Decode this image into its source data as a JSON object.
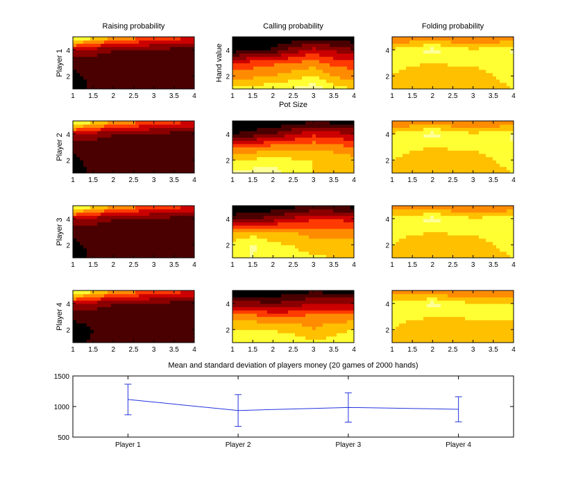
{
  "figure": {
    "column_titles": [
      "Raising probability",
      "Calling probability",
      "Folding probability"
    ],
    "row_labels": [
      "Player 1",
      "Player 2",
      "Player 3",
      "Player 4"
    ],
    "shared_x_label": "Pot Size",
    "shared_y_label": "Hand value"
  },
  "colors": {
    "colormap_hot": [
      "#000000",
      "#4a0000",
      "#8a0000",
      "#cc0000",
      "#ff3a00",
      "#ff8c00",
      "#ffc000",
      "#ffff33",
      "#ffff99",
      "#ffffff"
    ],
    "line_series": "#2233dd",
    "frame": "#000000"
  },
  "chart_data": [
    {
      "type": "heatmap",
      "title": "Raising probability",
      "ylabel": "Player 1",
      "x": [
        1,
        1.5,
        2,
        2.5,
        3,
        3.5,
        4
      ],
      "y": [
        1,
        2,
        3,
        4,
        5
      ],
      "xlim": [
        1,
        4
      ],
      "ylim": [
        1,
        5
      ],
      "xticks": [
        "1",
        "1.5",
        "2",
        "2.5",
        "3",
        "3.5",
        "4"
      ],
      "yticks": [
        "2",
        "4"
      ],
      "z": [
        [
          0.05,
          0.12,
          0.12,
          0.12,
          0.12,
          0.12,
          0.12
        ],
        [
          0.08,
          0.12,
          0.12,
          0.12,
          0.12,
          0.12,
          0.12
        ],
        [
          0.12,
          0.13,
          0.14,
          0.14,
          0.14,
          0.14,
          0.14
        ],
        [
          0.3,
          0.25,
          0.2,
          0.18,
          0.17,
          0.16,
          0.15
        ],
        [
          0.85,
          0.75,
          0.6,
          0.55,
          0.5,
          0.45,
          0.4
        ]
      ]
    },
    {
      "type": "heatmap",
      "title": "Calling probability",
      "xlabel": "Pot Size",
      "ylabel": "Hand value",
      "x": [
        1,
        1.5,
        2,
        2.5,
        3,
        3.5,
        4
      ],
      "y": [
        1,
        2,
        3,
        4,
        5
      ],
      "xlim": [
        1,
        4
      ],
      "ylim": [
        1,
        5
      ],
      "xticks": [
        "1",
        "1.5",
        "2",
        "2.5",
        "3",
        "3.5",
        "4"
      ],
      "yticks": [
        "2",
        "4"
      ],
      "z": [
        [
          0.75,
          0.75,
          0.78,
          0.82,
          0.88,
          0.75,
          0.7
        ],
        [
          0.55,
          0.58,
          0.6,
          0.65,
          0.72,
          0.6,
          0.55
        ],
        [
          0.42,
          0.45,
          0.48,
          0.52,
          0.55,
          0.47,
          0.45
        ],
        [
          0.05,
          0.08,
          0.12,
          0.25,
          0.35,
          0.28,
          0.22
        ],
        [
          0.0,
          0.0,
          0.0,
          0.02,
          0.05,
          0.03,
          0.02
        ]
      ]
    },
    {
      "type": "heatmap",
      "title": "Folding probability",
      "x": [
        1,
        1.5,
        2,
        2.5,
        3,
        3.5,
        4
      ],
      "y": [
        1,
        2,
        3,
        4,
        5
      ],
      "xlim": [
        1,
        4
      ],
      "ylim": [
        1,
        5
      ],
      "xticks": [
        "1",
        "1.5",
        "2",
        "2.5",
        "3",
        "3.5",
        "4"
      ],
      "yticks": [
        "2",
        "4"
      ],
      "z": [
        [
          0.68,
          0.62,
          0.6,
          0.6,
          0.62,
          0.68,
          0.7
        ],
        [
          0.7,
          0.62,
          0.6,
          0.6,
          0.62,
          0.7,
          0.72
        ],
        [
          0.75,
          0.72,
          0.7,
          0.72,
          0.72,
          0.75,
          0.75
        ],
        [
          0.72,
          0.78,
          0.85,
          0.76,
          0.72,
          0.75,
          0.82
        ],
        [
          0.5,
          0.5,
          0.5,
          0.5,
          0.5,
          0.5,
          0.5
        ]
      ]
    },
    {
      "type": "heatmap",
      "ylabel": "Player 2",
      "x": [
        1,
        1.5,
        2,
        2.5,
        3,
        3.5,
        4
      ],
      "y": [
        1,
        2,
        3,
        4,
        5
      ],
      "xlim": [
        1,
        4
      ],
      "ylim": [
        1,
        5
      ],
      "xticks": [
        "1",
        "1.5",
        "2",
        "2.5",
        "3",
        "3.5",
        "4"
      ],
      "yticks": [
        "2",
        "4"
      ],
      "z": [
        [
          0.06,
          0.12,
          0.12,
          0.12,
          0.12,
          0.12,
          0.12
        ],
        [
          0.08,
          0.12,
          0.12,
          0.12,
          0.12,
          0.12,
          0.1
        ],
        [
          0.12,
          0.13,
          0.14,
          0.14,
          0.14,
          0.13,
          0.1
        ],
        [
          0.3,
          0.25,
          0.2,
          0.18,
          0.17,
          0.16,
          0.15
        ],
        [
          0.85,
          0.75,
          0.6,
          0.55,
          0.5,
          0.45,
          0.4
        ]
      ]
    },
    {
      "type": "heatmap",
      "x": [
        1,
        1.5,
        2,
        2.5,
        3,
        3.5,
        4
      ],
      "y": [
        1,
        2,
        3,
        4,
        5
      ],
      "xlim": [
        1,
        4
      ],
      "ylim": [
        1,
        5
      ],
      "xticks": [
        "1",
        "1.5",
        "2",
        "2.5",
        "3",
        "3.5",
        "4"
      ],
      "yticks": [
        "2",
        "4"
      ],
      "z": [
        [
          0.82,
          0.85,
          0.86,
          0.75,
          0.7,
          0.7,
          0.7
        ],
        [
          0.7,
          0.72,
          0.74,
          0.72,
          0.7,
          0.68,
          0.65
        ],
        [
          0.5,
          0.52,
          0.55,
          0.55,
          0.58,
          0.55,
          0.5
        ],
        [
          0.1,
          0.15,
          0.2,
          0.3,
          0.38,
          0.35,
          0.3
        ],
        [
          0.0,
          0.0,
          0.0,
          0.05,
          0.08,
          0.06,
          0.05
        ]
      ]
    },
    {
      "type": "heatmap",
      "x": [
        1,
        1.5,
        2,
        2.5,
        3,
        3.5,
        4
      ],
      "y": [
        1,
        2,
        3,
        4,
        5
      ],
      "xlim": [
        1,
        4
      ],
      "ylim": [
        1,
        5
      ],
      "xticks": [
        "1",
        "1.5",
        "2",
        "2.5",
        "3",
        "3.5",
        "4"
      ],
      "yticks": [
        "2",
        "4"
      ],
      "z": [
        [
          0.68,
          0.62,
          0.6,
          0.6,
          0.62,
          0.68,
          0.7
        ],
        [
          0.7,
          0.65,
          0.6,
          0.6,
          0.63,
          0.7,
          0.72
        ],
        [
          0.75,
          0.72,
          0.7,
          0.72,
          0.72,
          0.75,
          0.78
        ],
        [
          0.72,
          0.78,
          0.85,
          0.76,
          0.72,
          0.75,
          0.82
        ],
        [
          0.5,
          0.5,
          0.5,
          0.5,
          0.5,
          0.5,
          0.5
        ]
      ]
    },
    {
      "type": "heatmap",
      "ylabel": "Player 3",
      "x": [
        1,
        1.5,
        2,
        2.5,
        3,
        3.5,
        4
      ],
      "y": [
        1,
        2,
        3,
        4,
        5
      ],
      "xlim": [
        1,
        4
      ],
      "ylim": [
        1,
        5
      ],
      "xticks": [
        "1",
        "1.5",
        "2",
        "2.5",
        "3",
        "3.5",
        "4"
      ],
      "yticks": [
        "2",
        "4"
      ],
      "z": [
        [
          0.05,
          0.12,
          0.12,
          0.12,
          0.12,
          0.12,
          0.1
        ],
        [
          0.08,
          0.12,
          0.12,
          0.12,
          0.12,
          0.12,
          0.12
        ],
        [
          0.12,
          0.13,
          0.14,
          0.14,
          0.14,
          0.14,
          0.14
        ],
        [
          0.3,
          0.25,
          0.2,
          0.18,
          0.17,
          0.16,
          0.15
        ],
        [
          0.85,
          0.75,
          0.6,
          0.55,
          0.5,
          0.45,
          0.4
        ]
      ]
    },
    {
      "type": "heatmap",
      "x": [
        1,
        1.5,
        2,
        2.5,
        3,
        3.5,
        4
      ],
      "y": [
        1,
        2,
        3,
        4,
        5
      ],
      "xlim": [
        1,
        4
      ],
      "ylim": [
        1,
        5
      ],
      "xticks": [
        "1",
        "1.5",
        "2",
        "2.5",
        "3",
        "3.5",
        "4"
      ],
      "yticks": [
        "2",
        "4"
      ],
      "z": [
        [
          0.78,
          0.8,
          0.74,
          0.72,
          0.72,
          0.7,
          0.7
        ],
        [
          0.72,
          0.82,
          0.72,
          0.7,
          0.66,
          0.64,
          0.65
        ],
        [
          0.62,
          0.64,
          0.62,
          0.6,
          0.55,
          0.55,
          0.55
        ],
        [
          0.15,
          0.2,
          0.25,
          0.32,
          0.4,
          0.4,
          0.35
        ],
        [
          0.0,
          0.0,
          0.02,
          0.06,
          0.1,
          0.08,
          0.06
        ]
      ]
    },
    {
      "type": "heatmap",
      "x": [
        1,
        1.5,
        2,
        2.5,
        3,
        3.5,
        4
      ],
      "y": [
        1,
        2,
        3,
        4,
        5
      ],
      "xlim": [
        1,
        4
      ],
      "ylim": [
        1,
        5
      ],
      "xticks": [
        "1",
        "1.5",
        "2",
        "2.5",
        "3",
        "3.5",
        "4"
      ],
      "yticks": [
        "2",
        "4"
      ],
      "z": [
        [
          0.68,
          0.66,
          0.64,
          0.62,
          0.64,
          0.68,
          0.7
        ],
        [
          0.7,
          0.64,
          0.62,
          0.6,
          0.63,
          0.7,
          0.72
        ],
        [
          0.75,
          0.72,
          0.7,
          0.72,
          0.72,
          0.75,
          0.78
        ],
        [
          0.72,
          0.76,
          0.85,
          0.76,
          0.72,
          0.74,
          0.78
        ],
        [
          0.55,
          0.52,
          0.5,
          0.5,
          0.5,
          0.5,
          0.5
        ]
      ]
    },
    {
      "type": "heatmap",
      "ylabel": "Player 4",
      "x": [
        1,
        1.5,
        2,
        2.5,
        3,
        3.5,
        4
      ],
      "y": [
        1,
        2,
        3,
        4,
        5
      ],
      "xlim": [
        1,
        4
      ],
      "ylim": [
        1,
        5
      ],
      "xticks": [
        "1",
        "1.5",
        "2",
        "2.5",
        "3",
        "3.5",
        "4"
      ],
      "yticks": [
        "2",
        "4"
      ],
      "z": [
        [
          0.04,
          0.12,
          0.12,
          0.12,
          0.12,
          0.12,
          0.1
        ],
        [
          0.05,
          0.1,
          0.12,
          0.12,
          0.12,
          0.12,
          0.12
        ],
        [
          0.12,
          0.13,
          0.14,
          0.14,
          0.14,
          0.14,
          0.14
        ],
        [
          0.3,
          0.25,
          0.2,
          0.18,
          0.17,
          0.16,
          0.15
        ],
        [
          0.85,
          0.75,
          0.6,
          0.55,
          0.5,
          0.45,
          0.4
        ]
      ]
    },
    {
      "type": "heatmap",
      "x": [
        1,
        1.5,
        2,
        2.5,
        3,
        3.5,
        4
      ],
      "y": [
        1,
        2,
        3,
        4,
        5
      ],
      "xlim": [
        1,
        4
      ],
      "ylim": [
        1,
        5
      ],
      "xticks": [
        "1",
        "1.5",
        "2",
        "2.5",
        "3",
        "3.5",
        "4"
      ],
      "yticks": [
        "2",
        "4"
      ],
      "z": [
        [
          0.74,
          0.74,
          0.74,
          0.74,
          0.74,
          0.74,
          0.8
        ],
        [
          0.7,
          0.7,
          0.7,
          0.68,
          0.6,
          0.66,
          0.7
        ],
        [
          0.55,
          0.55,
          0.5,
          0.5,
          0.55,
          0.55,
          0.55
        ],
        [
          0.25,
          0.25,
          0.2,
          0.25,
          0.3,
          0.3,
          0.3
        ],
        [
          0.0,
          0.0,
          0.02,
          0.05,
          0.08,
          0.06,
          0.05
        ]
      ]
    },
    {
      "type": "heatmap",
      "x": [
        1,
        1.5,
        2,
        2.5,
        3,
        3.5,
        4
      ],
      "y": [
        1,
        2,
        3,
        4,
        5
      ],
      "xlim": [
        1,
        4
      ],
      "ylim": [
        1,
        5
      ],
      "xticks": [
        "1",
        "1.5",
        "2",
        "2.5",
        "3",
        "3.5",
        "4"
      ],
      "yticks": [
        "2",
        "4"
      ],
      "z": [
        [
          0.68,
          0.62,
          0.6,
          0.6,
          0.6,
          0.68,
          0.7
        ],
        [
          0.7,
          0.64,
          0.62,
          0.6,
          0.62,
          0.66,
          0.64
        ],
        [
          0.75,
          0.72,
          0.7,
          0.7,
          0.72,
          0.72,
          0.72
        ],
        [
          0.76,
          0.74,
          0.85,
          0.74,
          0.72,
          0.72,
          0.7
        ],
        [
          0.55,
          0.52,
          0.5,
          0.5,
          0.5,
          0.5,
          0.5
        ]
      ]
    },
    {
      "type": "line",
      "title": "Mean and standard deviation of players money (20 games of 2000 hands)",
      "categories": [
        "Player 1",
        "Player 2",
        "Player 3",
        "Player 4"
      ],
      "values": [
        1115,
        935,
        985,
        955
      ],
      "errors": [
        250,
        260,
        240,
        205
      ],
      "ylim": [
        500,
        1500
      ],
      "yticks": [
        "500",
        "1000",
        "1500"
      ]
    }
  ]
}
